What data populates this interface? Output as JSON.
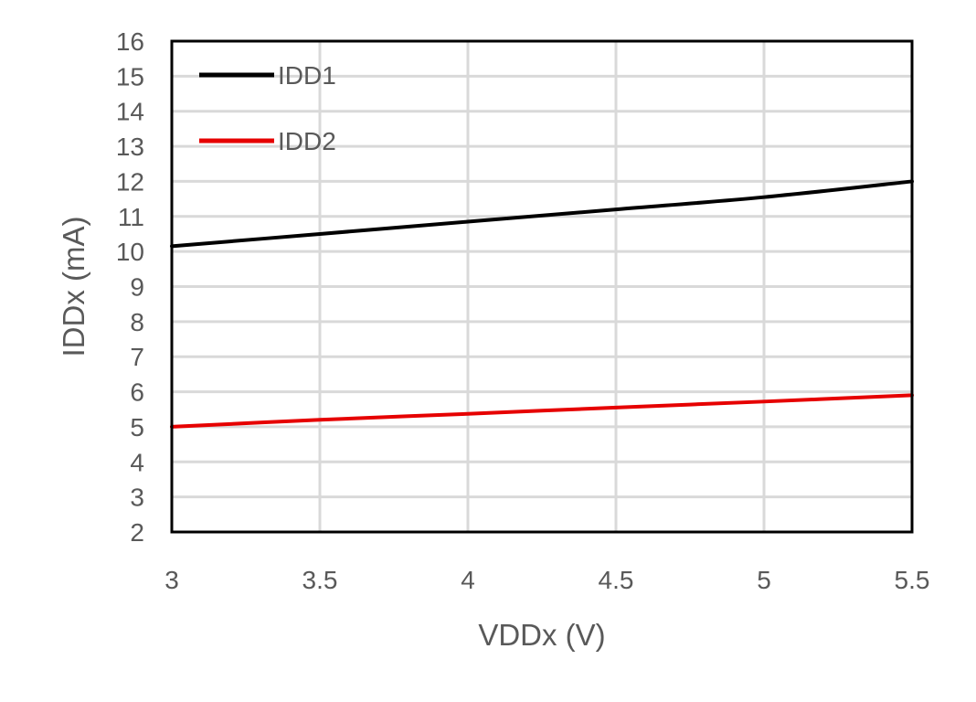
{
  "chart_data": {
    "type": "line",
    "title": "",
    "xlabel": "VDDx (V)",
    "ylabel": "IDDx (mA)",
    "xlim": [
      3,
      5.5
    ],
    "ylim": [
      2,
      16
    ],
    "xticks": [
      3,
      3.5,
      4,
      4.5,
      5,
      5.5
    ],
    "xtick_labels": [
      "3",
      "3.5",
      "4",
      "4.5",
      "5",
      "5.5"
    ],
    "yticks": [
      2,
      3,
      4,
      5,
      6,
      7,
      8,
      9,
      10,
      11,
      12,
      13,
      14,
      15,
      16
    ],
    "ytick_labels": [
      "2",
      "3",
      "4",
      "5",
      "6",
      "7",
      "8",
      "9",
      "10",
      "11",
      "12",
      "13",
      "14",
      "15",
      "16"
    ],
    "grid": true,
    "legend_position": "top-left",
    "series": [
      {
        "name": "IDD1",
        "color": "#000000",
        "x": [
          3,
          3.5,
          4,
          4.5,
          5,
          5.5
        ],
        "y": [
          10.15,
          10.5,
          10.85,
          11.2,
          11.55,
          12.0
        ]
      },
      {
        "name": "IDD2",
        "color": "#e60000",
        "x": [
          3,
          3.5,
          4,
          4.5,
          5,
          5.5
        ],
        "y": [
          5.0,
          5.2,
          5.37,
          5.55,
          5.72,
          5.9
        ]
      }
    ]
  }
}
